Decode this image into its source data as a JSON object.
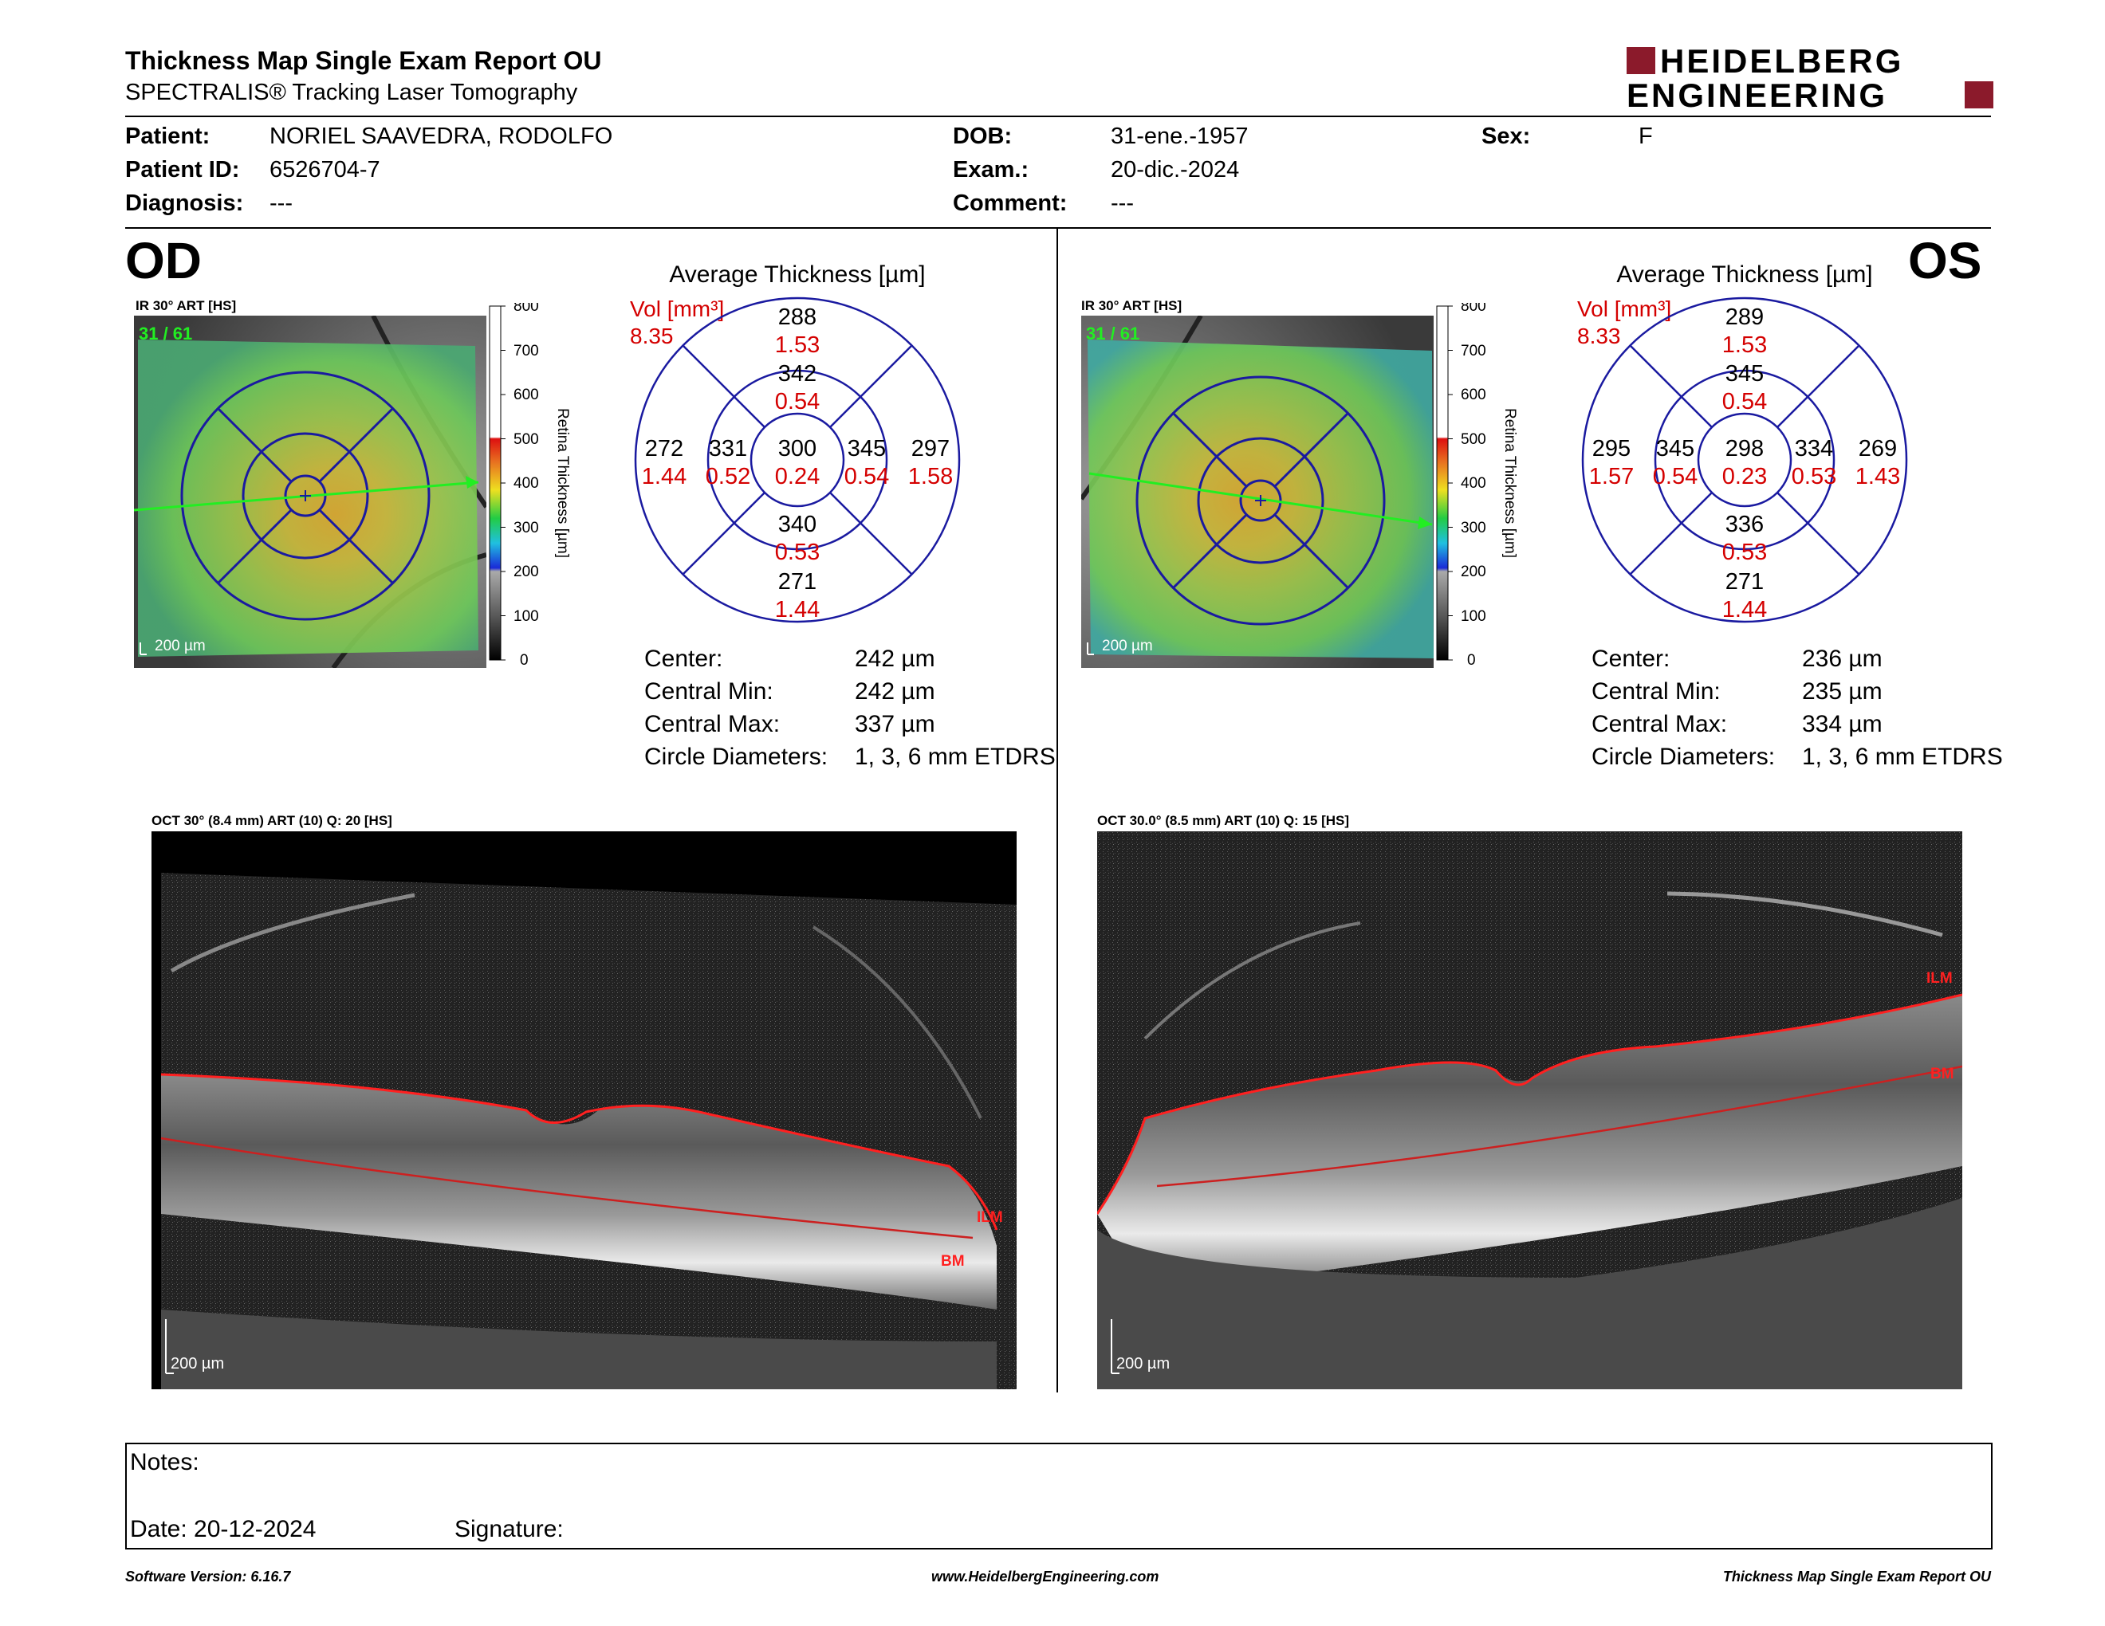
{
  "header": {
    "title": "Thickness Map Single Exam Report OU",
    "subtitle": "SPECTRALIS® Tracking Laser Tomography",
    "logo_line1": "HEIDELBERG",
    "logo_line2": "ENGINEERING"
  },
  "patient": {
    "patient_label": "Patient:",
    "patient_value": "NORIEL SAAVEDRA, RODOLFO",
    "patient_id_label": "Patient ID:",
    "patient_id_value": "6526704-7",
    "diagnosis_label": "Diagnosis:",
    "diagnosis_value": "---",
    "dob_label": "DOB:",
    "dob_value": "31-ene.-1957",
    "exam_label": "Exam.:",
    "exam_value": "20-dic.-2024",
    "comment_label": "Comment:",
    "comment_value": "---",
    "sex_label": "Sex:",
    "sex_value": "F"
  },
  "od": {
    "eye": "OD",
    "ir_label": "IR 30° ART [HS]",
    "frame_counter": "31 / 61",
    "scale_label": "200 µm",
    "scale_ticks": [
      "800",
      "700",
      "600",
      "500",
      "400",
      "300",
      "200",
      "100",
      "0"
    ],
    "scale_title": "Retina Thickness [µm]",
    "avg_title": "Average Thickness [µm]",
    "vol_label": "Vol [mm³]",
    "vol_total": "8.35",
    "etdrs": {
      "center": {
        "t": "300",
        "v": "0.24"
      },
      "inner_sup": {
        "t": "342",
        "v": "0.54"
      },
      "inner_inf": {
        "t": "340",
        "v": "0.53"
      },
      "inner_left": {
        "t": "331",
        "v": "0.52"
      },
      "inner_right": {
        "t": "345",
        "v": "0.54"
      },
      "outer_sup": {
        "t": "288",
        "v": "1.53"
      },
      "outer_inf": {
        "t": "271",
        "v": "1.44"
      },
      "outer_left": {
        "t": "272",
        "v": "1.44"
      },
      "outer_right": {
        "t": "297",
        "v": "1.58"
      }
    },
    "stats": {
      "center_label": "Center:",
      "center_value": "242 µm",
      "min_label": "Central Min:",
      "min_value": "242 µm",
      "max_label": "Central Max:",
      "max_value": "337 µm",
      "diam_label": "Circle Diameters:",
      "diam_value": "1, 3, 6 mm ETDRS"
    },
    "oct_label": "OCT 30° (8.4 mm) ART (10) Q: 20 [HS]",
    "oct_scale": "200 µm",
    "ilm": "ILM",
    "bm": "BM"
  },
  "os": {
    "eye": "OS",
    "ir_label": "IR 30° ART [HS]",
    "frame_counter": "31 / 61",
    "scale_label": "200 µm",
    "scale_ticks": [
      "800",
      "700",
      "600",
      "500",
      "400",
      "300",
      "200",
      "100",
      "0"
    ],
    "scale_title": "Retina Thickness [µm]",
    "avg_title": "Average Thickness [µm]",
    "vol_label": "Vol [mm³]",
    "vol_total": "8.33",
    "etdrs": {
      "center": {
        "t": "298",
        "v": "0.23"
      },
      "inner_sup": {
        "t": "345",
        "v": "0.54"
      },
      "inner_inf": {
        "t": "336",
        "v": "0.53"
      },
      "inner_left": {
        "t": "345",
        "v": "0.54"
      },
      "inner_right": {
        "t": "334",
        "v": "0.53"
      },
      "outer_sup": {
        "t": "289",
        "v": "1.53"
      },
      "outer_inf": {
        "t": "271",
        "v": "1.44"
      },
      "outer_left": {
        "t": "295",
        "v": "1.57"
      },
      "outer_right": {
        "t": "269",
        "v": "1.43"
      }
    },
    "stats": {
      "center_label": "Center:",
      "center_value": "236 µm",
      "min_label": "Central Min:",
      "min_value": "235 µm",
      "max_label": "Central Max:",
      "max_value": "334 µm",
      "diam_label": "Circle Diameters:",
      "diam_value": "1, 3, 6 mm ETDRS"
    },
    "oct_label": "OCT 30.0° (8.5 mm) ART (10) Q: 15 [HS]",
    "oct_scale": "200 µm",
    "ilm": "ILM",
    "bm": "BM"
  },
  "notes": {
    "notes_label": "Notes:",
    "date_label": "Date: 20-12-2024",
    "signature_label": "Signature:"
  },
  "footer": {
    "software": "Software Version: 6.16.7",
    "website": "www.HeidelbergEngineering.com",
    "report": "Thickness Map Single Exam Report OU"
  },
  "colors": {
    "brand_red": "#8b1a2b",
    "vol_red": "#d40000",
    "grid_blue": "#1a1aa0"
  }
}
